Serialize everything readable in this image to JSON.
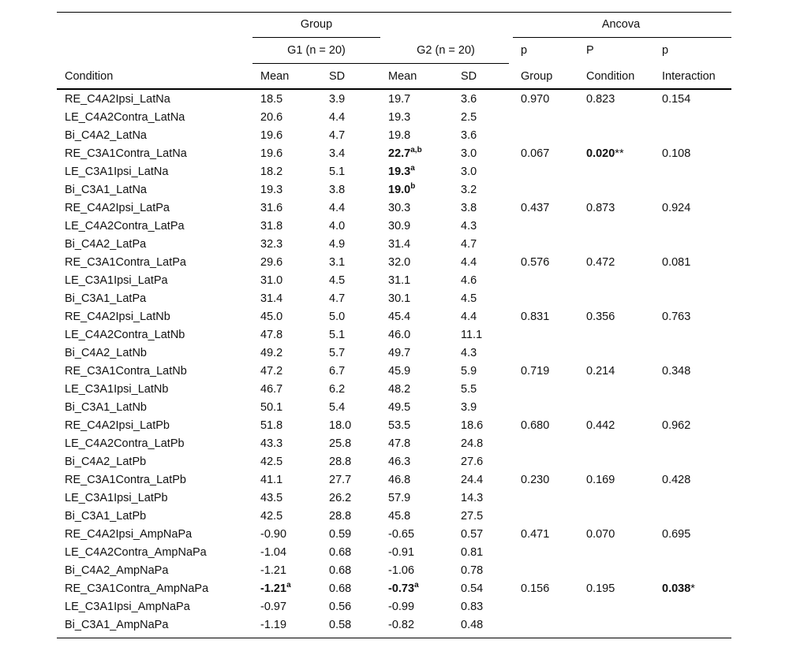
{
  "header": {
    "group": "Group",
    "g1": "G1 (n = 20)",
    "g2": "G2 (n = 20)",
    "ancova": "Ancova",
    "ancova_top": [
      "p",
      "P",
      "p"
    ],
    "ancova_bottom": [
      "Group",
      "Condition",
      "Interaction"
    ],
    "condition": "Condition",
    "columns": [
      "Mean",
      "SD",
      "Mean",
      "SD"
    ]
  },
  "table": {
    "rows": [
      [
        "RE_C4A2Ipsi_LatNa",
        "18.5",
        "3.9",
        "19.7",
        "3.6",
        "0.970",
        "0.823",
        "0.154"
      ],
      [
        "LE_C4A2Contra_LatNa",
        "20.6",
        "4.4",
        "19.3",
        "2.5",
        null,
        null,
        null
      ],
      [
        "Bi_C4A2_LatNa",
        "19.6",
        "4.7",
        "19.8",
        "3.6",
        null,
        null,
        null
      ],
      [
        "RE_C3A1Contra_LatNa",
        "19.6",
        "3.4",
        {
          "value": "22.7",
          "sup": "a,b",
          "bold": true
        },
        "3.0",
        "0.067",
        {
          "value": "0.020",
          "bold": true,
          "suffix": "**"
        },
        "0.108"
      ],
      [
        "LE_C3A1Ipsi_LatNa",
        "18.2",
        "5.1",
        {
          "value": "19.3",
          "sup": "a",
          "bold": true
        },
        "3.0",
        null,
        null,
        null
      ],
      [
        "Bi_C3A1_LatNa",
        "19.3",
        "3.8",
        {
          "value": "19.0",
          "sup": "b",
          "bold": true
        },
        "3.2",
        null,
        null,
        null
      ],
      [
        "RE_C4A2Ipsi_LatPa",
        "31.6",
        "4.4",
        "30.3",
        "3.8",
        "0.437",
        "0.873",
        "0.924"
      ],
      [
        "LE_C4A2Contra_LatPa",
        "31.8",
        "4.0",
        "30.9",
        "4.3",
        null,
        null,
        null
      ],
      [
        "Bi_C4A2_LatPa",
        "32.3",
        "4.9",
        "31.4",
        "4.7",
        null,
        null,
        null
      ],
      [
        "RE_C3A1Contra_LatPa",
        "29.6",
        "3.1",
        "32.0",
        "4.4",
        "0.576",
        "0.472",
        "0.081"
      ],
      [
        "LE_C3A1Ipsi_LatPa",
        "31.0",
        "4.5",
        "31.1",
        "4.6",
        null,
        null,
        null
      ],
      [
        "Bi_C3A1_LatPa",
        "31.4",
        "4.7",
        "30.1",
        "4.5",
        null,
        null,
        null
      ],
      [
        "RE_C4A2Ipsi_LatNb",
        "45.0",
        "5.0",
        "45.4",
        "4.4",
        "0.831",
        "0.356",
        "0.763"
      ],
      [
        "LE_C4A2Contra_LatNb",
        "47.8",
        "5.1",
        "46.0",
        "11.1",
        null,
        null,
        null
      ],
      [
        "Bi_C4A2_LatNb",
        "49.2",
        "5.7",
        "49.7",
        "4.3",
        null,
        null,
        null
      ],
      [
        "RE_C3A1Contra_LatNb",
        "47.2",
        "6.7",
        "45.9",
        "5.9",
        "0.719",
        "0.214",
        "0.348"
      ],
      [
        "LE_C3A1Ipsi_LatNb",
        "46.7",
        "6.2",
        "48.2",
        "5.5",
        null,
        null,
        null
      ],
      [
        "Bi_C3A1_LatNb",
        "50.1",
        "5.4",
        "49.5",
        "3.9",
        null,
        null,
        null
      ],
      [
        "RE_C4A2Ipsi_LatPb",
        "51.8",
        "18.0",
        "53.5",
        "18.6",
        "0.680",
        "0.442",
        "0.962"
      ],
      [
        "LE_C4A2Contra_LatPb",
        "43.3",
        "25.8",
        "47.8",
        "24.8",
        null,
        null,
        null
      ],
      [
        "Bi_C4A2_LatPb",
        "42.5",
        "28.8",
        "46.3",
        "27.6",
        null,
        null,
        null
      ],
      [
        "RE_C3A1Contra_LatPb",
        "41.1",
        "27.7",
        "46.8",
        "24.4",
        "0.230",
        "0.169",
        "0.428"
      ],
      [
        "LE_C3A1Ipsi_LatPb",
        "43.5",
        "26.2",
        "57.9",
        "14.3",
        null,
        null,
        null
      ],
      [
        "Bi_C3A1_LatPb",
        "42.5",
        "28.8",
        "45.8",
        "27.5",
        null,
        null,
        null
      ],
      [
        "RE_C4A2Ipsi_AmpNaPa",
        "-0.90",
        "0.59",
        "-0.65",
        "0.57",
        "0.471",
        "0.070",
        "0.695"
      ],
      [
        "LE_C4A2Contra_AmpNaPa",
        "-1.04",
        "0.68",
        "-0.91",
        "0.81",
        null,
        null,
        null
      ],
      [
        "Bi_C4A2_AmpNaPa",
        "-1.21",
        "0.68",
        "-1.06",
        "0.78",
        null,
        null,
        null
      ],
      [
        "RE_C3A1Contra_AmpNaPa",
        {
          "value": "-1.21",
          "sup": "a",
          "bold": true
        },
        "0.68",
        {
          "value": "-0.73",
          "sup": "a",
          "bold": true
        },
        "0.54",
        "0.156",
        "0.195",
        {
          "value": "0.038",
          "bold": true,
          "suffix": "*"
        }
      ],
      [
        "LE_C3A1Ipsi_AmpNaPa",
        "-0.97",
        "0.56",
        "-0.99",
        "0.83",
        null,
        null,
        null
      ],
      [
        "Bi_C3A1_AmpNaPa",
        "-1.19",
        "0.58",
        "-0.82",
        "0.48",
        null,
        null,
        null
      ]
    ]
  }
}
